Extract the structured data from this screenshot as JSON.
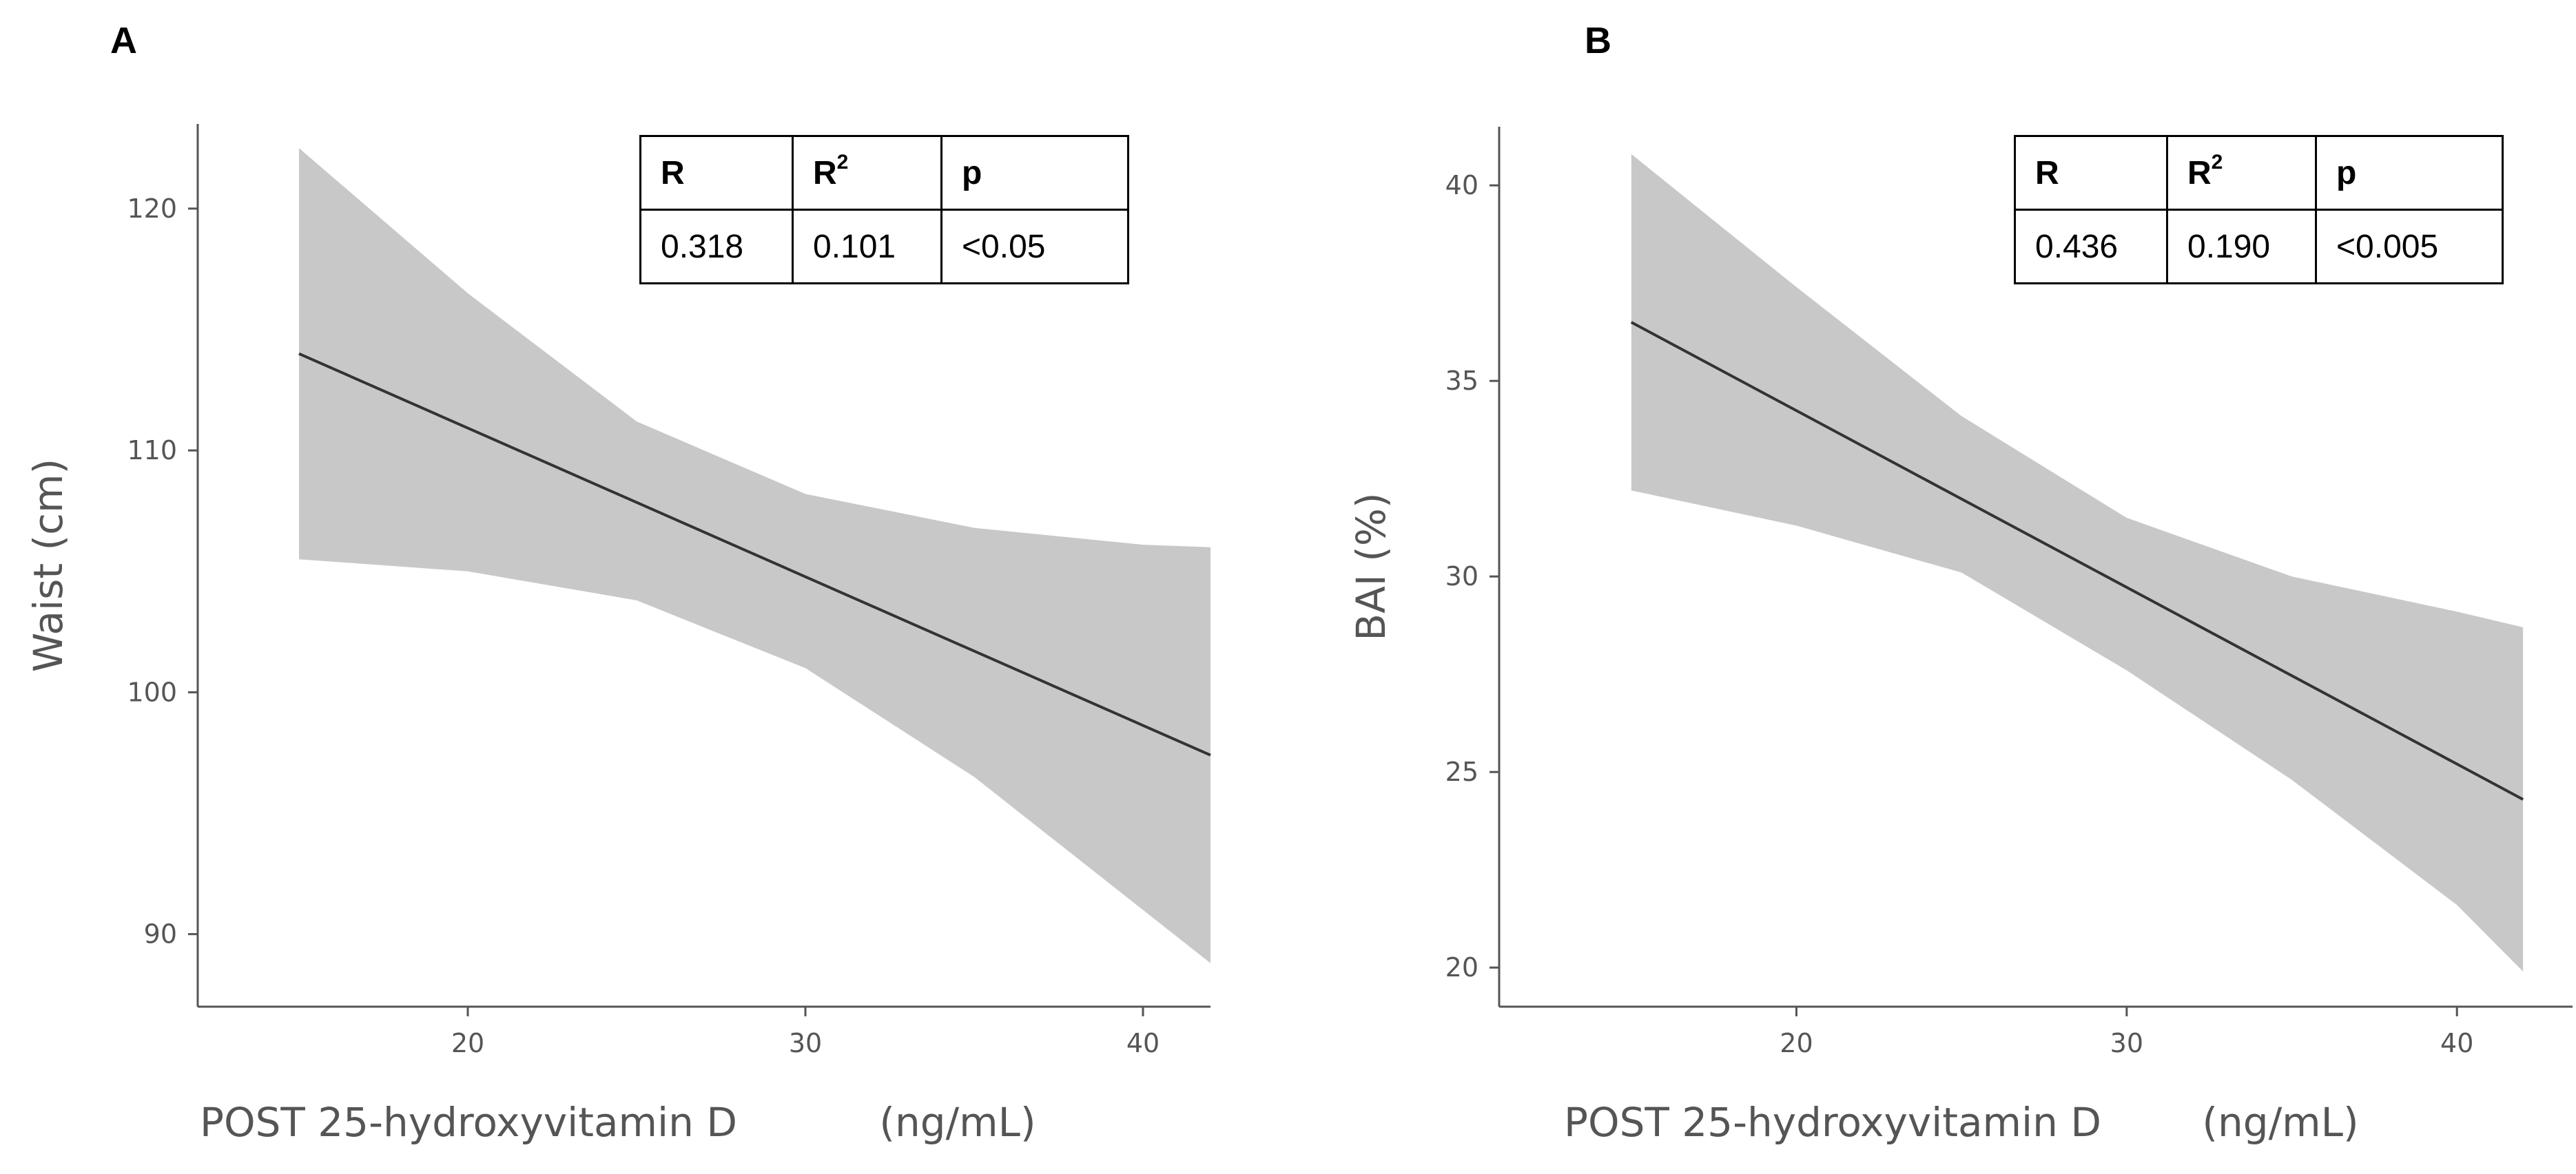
{
  "chart_data": [
    {
      "type": "line",
      "panel_label": "A",
      "xlabel": "POST 25-hydroxyvitamin D",
      "xlabel_unit": "(ng/mL)",
      "ylabel": "Waist (cm)",
      "xlim": [
        12,
        42
      ],
      "ylim": [
        87,
        123.5
      ],
      "xticks": [
        20,
        30,
        40
      ],
      "yticks": [
        90,
        100,
        110,
        120
      ],
      "line": {
        "x": [
          15,
          42
        ],
        "y": [
          114.0,
          97.4
        ]
      },
      "confidence_band": {
        "x": [
          15,
          20,
          25,
          30,
          35,
          40,
          42
        ],
        "lower": [
          105.5,
          105.0,
          103.8,
          101.0,
          96.5,
          91.0,
          88.8
        ],
        "upper": [
          122.5,
          116.5,
          111.2,
          108.2,
          106.8,
          106.1,
          106.0
        ]
      },
      "stats_table": {
        "headers": [
          "R",
          "R",
          "p"
        ],
        "values": [
          "0.318",
          "0.101",
          "<0.05"
        ]
      }
    },
    {
      "type": "line",
      "panel_label": "B",
      "xlabel": "POST 25-hydroxyvitamin D",
      "xlabel_unit": "(ng/mL)",
      "ylabel": "BAI (%)",
      "xlim": [
        11,
        43.5
      ],
      "ylim": [
        19,
        41.5
      ],
      "xticks": [
        20,
        30,
        40
      ],
      "yticks": [
        20,
        25,
        30,
        35,
        40
      ],
      "line": {
        "x": [
          15,
          42
        ],
        "y": [
          36.5,
          24.3
        ]
      },
      "confidence_band": {
        "x": [
          15,
          20,
          25,
          30,
          35,
          40,
          42
        ],
        "lower": [
          32.2,
          31.3,
          30.1,
          27.6,
          24.8,
          21.6,
          19.9
        ],
        "upper": [
          40.8,
          37.4,
          34.1,
          31.5,
          30.0,
          29.1,
          28.7
        ]
      },
      "stats_table": {
        "headers": [
          "R",
          "R",
          "p"
        ],
        "values": [
          "0.436",
          "0.190",
          "<0.005"
        ]
      }
    }
  ],
  "superscript": "2",
  "colors": {
    "band": "#c8c8c8",
    "line": "#333333",
    "axis": "#555555",
    "text": "#555555"
  }
}
